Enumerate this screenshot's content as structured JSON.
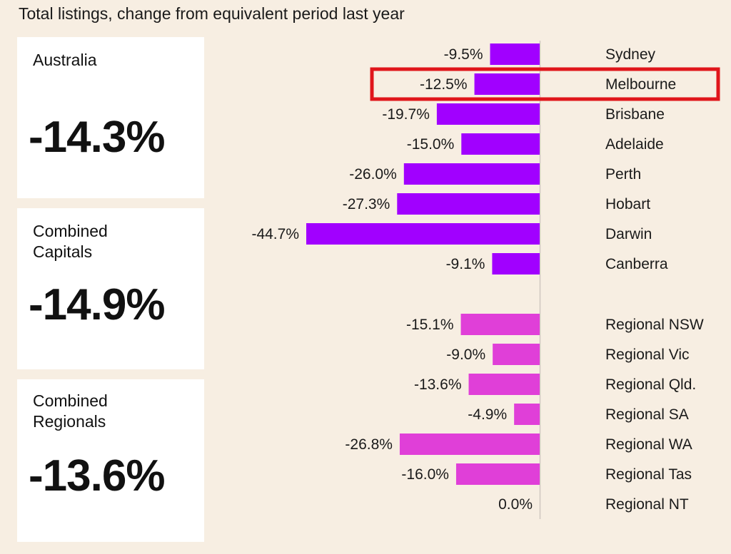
{
  "title": "Total listings, change from equivalent period last year",
  "summary": [
    {
      "label": "Australia",
      "value": "-14.3%"
    },
    {
      "label": "Combined\nCapitals",
      "value": "-14.9%"
    },
    {
      "label": "Combined\nRegionals",
      "value": "-13.6%"
    }
  ],
  "colors": {
    "capital": "#a100ff",
    "regional": "#e03fd8",
    "highlight": "#e0151b",
    "axis": "#cfc8bf",
    "card": "#ffffff"
  },
  "highlighted_category": "Melbourne",
  "chart_data": {
    "type": "bar",
    "orientation": "horizontal",
    "title": "Total listings, change from equivalent period last year",
    "xlim": [
      -44.7,
      0
    ],
    "categories": [
      "Sydney",
      "Melbourne",
      "Brisbane",
      "Adelaide",
      "Perth",
      "Hobart",
      "Darwin",
      "Canberra",
      "Regional NSW",
      "Regional Vic",
      "Regional Qld.",
      "Regional SA",
      "Regional WA",
      "Regional Tas",
      "Regional NT"
    ],
    "values": [
      -9.5,
      -12.5,
      -19.7,
      -15.0,
      -26.0,
      -27.3,
      -44.7,
      -9.1,
      -15.1,
      -9.0,
      -13.6,
      -4.9,
      -26.8,
      -16.0,
      0.0
    ],
    "labels": [
      "-9.5%",
      "-12.5%",
      "-19.7%",
      "-15.0%",
      "-26.0%",
      "-27.3%",
      "-44.7%",
      "-9.1%",
      "-15.1%",
      "-9.0%",
      "-13.6%",
      "-4.9%",
      "-26.8%",
      "-16.0%",
      "0.0%"
    ],
    "groups": [
      "capital",
      "capital",
      "capital",
      "capital",
      "capital",
      "capital",
      "capital",
      "capital",
      "regional",
      "regional",
      "regional",
      "regional",
      "regional",
      "regional",
      "regional"
    ]
  }
}
